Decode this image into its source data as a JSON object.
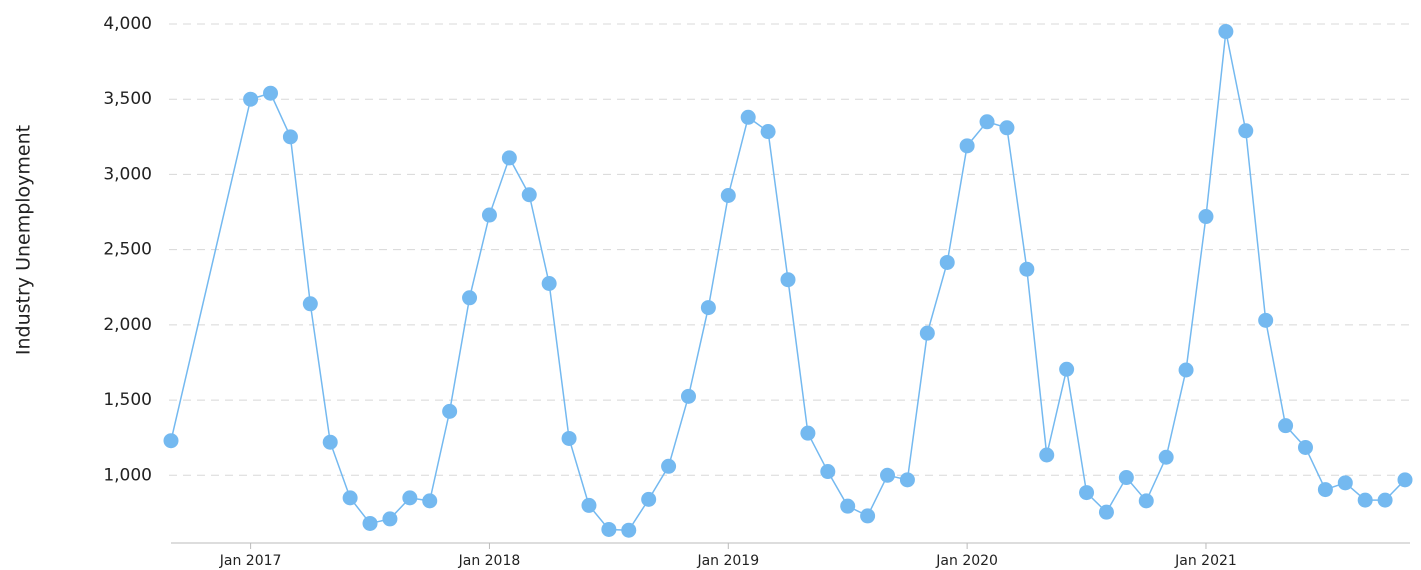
{
  "chart_data": {
    "type": "line",
    "y_label": "Industry Unemployment",
    "x": [
      "2016-09",
      "2017-01",
      "2017-02",
      "2017-03",
      "2017-04",
      "2017-05",
      "2017-06",
      "2017-07",
      "2017-08",
      "2017-09",
      "2017-10",
      "2017-11",
      "2017-12",
      "2018-01",
      "2018-02",
      "2018-03",
      "2018-04",
      "2018-05",
      "2018-06",
      "2018-07",
      "2018-08",
      "2018-09",
      "2018-10",
      "2018-11",
      "2018-12",
      "2019-01",
      "2019-02",
      "2019-03",
      "2019-04",
      "2019-05",
      "2019-06",
      "2019-07",
      "2019-08",
      "2019-09",
      "2019-10",
      "2019-11",
      "2019-12",
      "2020-01",
      "2020-02",
      "2020-03",
      "2020-04",
      "2020-05",
      "2020-06",
      "2020-07",
      "2020-08",
      "2020-09",
      "2020-10",
      "2020-11",
      "2020-12",
      "2021-01",
      "2021-02",
      "2021-03",
      "2021-04",
      "2021-05",
      "2021-06",
      "2021-07",
      "2021-08",
      "2021-09",
      "2021-10",
      "2021-11"
    ],
    "series": [
      {
        "name": "Industry Unemployment",
        "color": "#74b9f0",
        "values": [
          1230,
          3500,
          3540,
          3250,
          2140,
          1220,
          850,
          680,
          710,
          850,
          830,
          1425,
          2180,
          2730,
          3110,
          2865,
          2275,
          1245,
          800,
          640,
          635,
          840,
          1060,
          1525,
          2115,
          2860,
          3380,
          3285,
          2300,
          1280,
          1025,
          795,
          730,
          1000,
          970,
          1945,
          2415,
          3190,
          3350,
          3310,
          2370,
          1135,
          1705,
          885,
          755,
          985,
          830,
          1120,
          1700,
          2720,
          3950,
          3290,
          2030,
          1330,
          1185,
          905,
          950,
          835,
          835,
          970
        ]
      }
    ],
    "xlim": [
      "2016-09",
      "2021-11"
    ],
    "xticks": [
      {
        "value": "2017-01",
        "label": "Jan 2017"
      },
      {
        "value": "2018-01",
        "label": "Jan 2018"
      },
      {
        "value": "2019-01",
        "label": "Jan 2019"
      },
      {
        "value": "2020-01",
        "label": "Jan 2020"
      },
      {
        "value": "2021-01",
        "label": "Jan 2021"
      }
    ],
    "ylim": [
      550,
      4000
    ],
    "yticks": [
      {
        "value": 1000,
        "label": "1,000"
      },
      {
        "value": 1500,
        "label": "1,500"
      },
      {
        "value": 2000,
        "label": "2,000"
      },
      {
        "value": 2500,
        "label": "2,500"
      },
      {
        "value": 3000,
        "label": "3,000"
      },
      {
        "value": 3500,
        "label": "3,500"
      },
      {
        "value": 4000,
        "label": "4,000"
      }
    ],
    "grid": true
  }
}
